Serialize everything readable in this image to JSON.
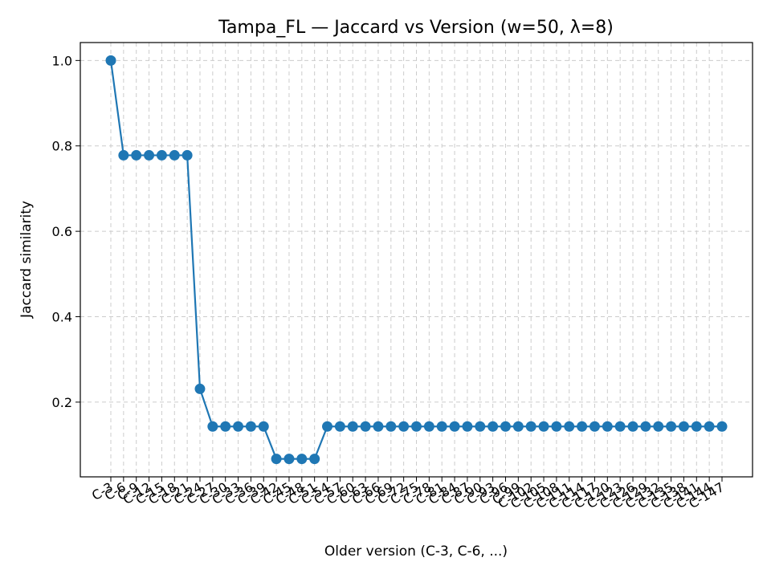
{
  "chart_data": {
    "type": "line",
    "title": "Tampa_FL — Jaccard vs Version (w=50, λ=8)",
    "xlabel": "Older version (C-3, C-6, ...)",
    "ylabel": "Jaccard similarity",
    "categories": [
      "C-3",
      "C-6",
      "C-9",
      "C-12",
      "C-15",
      "C-18",
      "C-21",
      "C-24",
      "C-27",
      "C-30",
      "C-33",
      "C-36",
      "C-39",
      "C-42",
      "C-45",
      "C-48",
      "C-51",
      "C-54",
      "C-57",
      "C-60",
      "C-63",
      "C-66",
      "C-69",
      "C-72",
      "C-75",
      "C-78",
      "C-81",
      "C-84",
      "C-87",
      "C-90",
      "C-93",
      "C-96",
      "C-99",
      "C-102",
      "C-105",
      "C-108",
      "C-111",
      "C-114",
      "C-117",
      "C-120",
      "C-123",
      "C-126",
      "C-129",
      "C-132",
      "C-135",
      "C-138",
      "C-141",
      "C-144",
      "C-147"
    ],
    "series": [
      {
        "color": "#1f77b4",
        "values": [
          1.0,
          0.778,
          0.778,
          0.778,
          0.778,
          0.778,
          0.778,
          0.231,
          0.143,
          0.143,
          0.143,
          0.143,
          0.143,
          0.067,
          0.067,
          0.067,
          0.067,
          0.143,
          0.143,
          0.143,
          0.143,
          0.143,
          0.143,
          0.143,
          0.143,
          0.143,
          0.143,
          0.143,
          0.143,
          0.143,
          0.143,
          0.143,
          0.143,
          0.143,
          0.143,
          0.143,
          0.143,
          0.143,
          0.143,
          0.143,
          0.143,
          0.143,
          0.143,
          0.143,
          0.143,
          0.143,
          0.143,
          0.143,
          0.143
        ]
      }
    ],
    "yticks": [
      "0.2",
      "0.4",
      "0.6",
      "0.8",
      "1.0"
    ],
    "ylim": [
      0.025,
      1.042
    ],
    "grid": true,
    "marker": "circle"
  }
}
